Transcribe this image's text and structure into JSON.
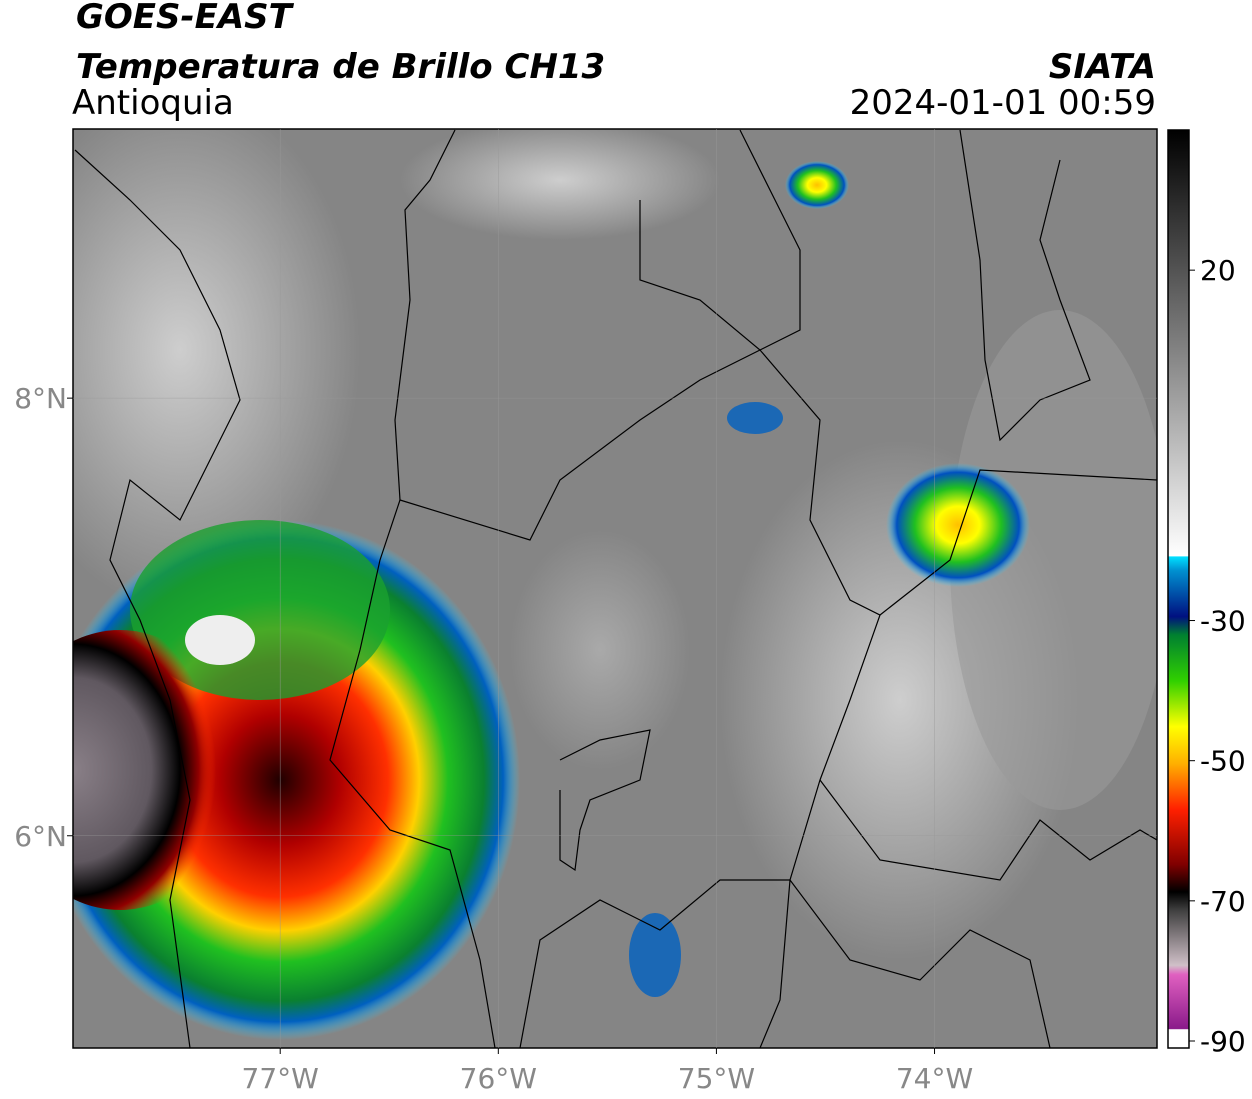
{
  "header": {
    "title": "GOES-EAST",
    "subtitle": "Temperatura de Brillo CH13",
    "region": "Antioquia",
    "source": "SIATA",
    "datetime": "2024-01-01 00:59"
  },
  "map": {
    "xlim": [
      -77.95,
      -72.98
    ],
    "ylim": [
      5.03,
      9.23
    ],
    "xticks": [
      {
        "value": -77,
        "label": "77°W"
      },
      {
        "value": -76,
        "label": "76°W"
      },
      {
        "value": -75,
        "label": "75°W"
      },
      {
        "value": -74,
        "label": "74°W"
      }
    ],
    "yticks": [
      {
        "value": 8,
        "label": "8°N"
      },
      {
        "value": 6,
        "label": "6°N"
      }
    ],
    "grid": true
  },
  "colorbar": {
    "lim": [
      -91,
      40
    ],
    "ticks": [
      20,
      -30,
      -50,
      -70,
      -90
    ]
  }
}
